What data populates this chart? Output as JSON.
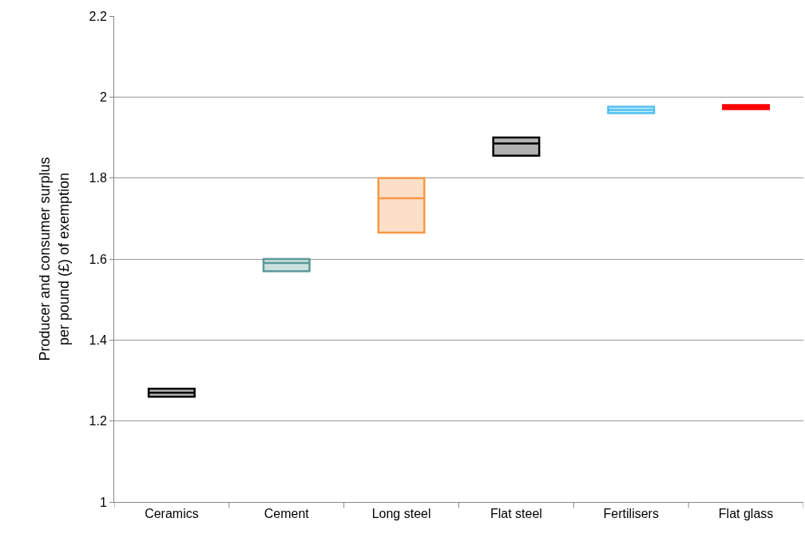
{
  "chart_data": {
    "type": "box",
    "ylabel": "Producer and consumer surplus\nper pound (£) of exemption",
    "categories": [
      "Ceramics",
      "Cement",
      "Long steel",
      "Flat steel",
      "Fertilisers",
      "Flat glass"
    ],
    "boxes": [
      {
        "low": 1.26,
        "q1": 1.26,
        "median": 1.27,
        "q3": 1.28,
        "high": 1.28
      },
      {
        "low": 1.57,
        "q1": 1.57,
        "median": 1.59,
        "q3": 1.6,
        "high": 1.6
      },
      {
        "low": 1.665,
        "q1": 1.665,
        "median": 1.75,
        "q3": 1.8,
        "high": 1.8
      },
      {
        "low": 1.855,
        "q1": 1.855,
        "median": 1.885,
        "q3": 1.9,
        "high": 1.9
      },
      {
        "low": 1.96,
        "q1": 1.96,
        "median": 1.968,
        "q3": 1.976,
        "high": 1.976
      },
      {
        "low": 1.97,
        "q1": 1.97,
        "median": 1.975,
        "q3": 1.98,
        "high": 1.98
      }
    ],
    "colors": [
      "#000000",
      "#5b9898",
      "#f79646",
      "#000000",
      "#4fc1f0",
      "#ff0000"
    ],
    "ylim": [
      1,
      2.2
    ],
    "yticks": [
      1,
      1.2,
      1.4,
      1.6,
      1.8,
      2,
      2.2
    ],
    "grid": "y",
    "legend": false
  }
}
